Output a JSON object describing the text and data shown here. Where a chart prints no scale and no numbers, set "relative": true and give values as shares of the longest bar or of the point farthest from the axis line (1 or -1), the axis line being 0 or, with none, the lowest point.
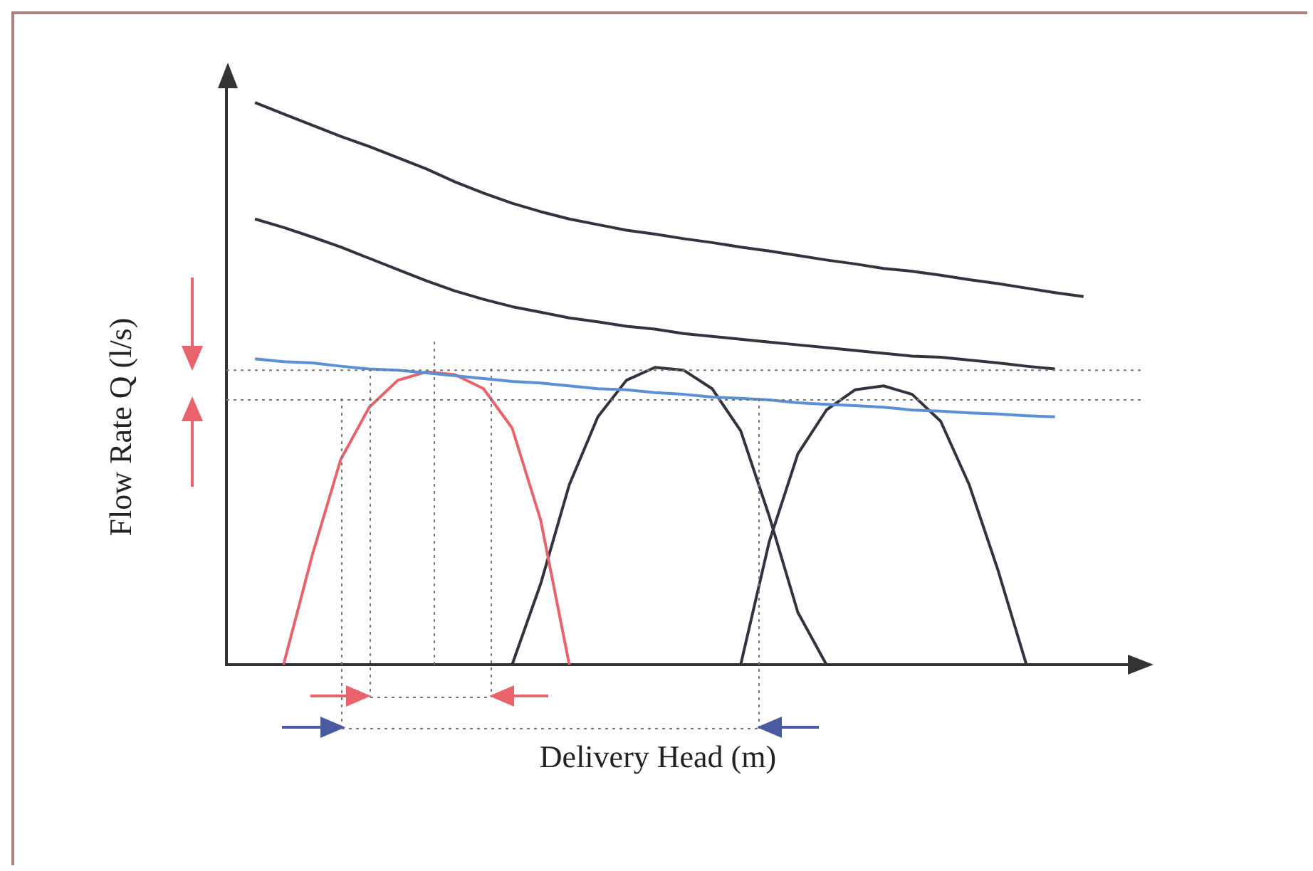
{
  "chart_data": {
    "type": "line",
    "relative": true,
    "xlabel": "Delivery Head (m)",
    "ylabel": "Flow Rate Q (l/s)",
    "legend": false,
    "ref_lines": [
      {
        "axis": "y",
        "value": 0.524,
        "color": "#777777",
        "line_style": "dotted"
      },
      {
        "axis": "y",
        "value": 0.471,
        "color": "#777777",
        "line_style": "dotted"
      }
    ],
    "grid": false,
    "marker": "none",
    "line_style": "solid",
    "categories": [
      null,
      null,
      null,
      null,
      null,
      null,
      null,
      null,
      null,
      null,
      null,
      null,
      null,
      null,
      null,
      null,
      null,
      null,
      null,
      null,
      null,
      null,
      null,
      null,
      null,
      null,
      null,
      null,
      null,
      null,
      null,
      null,
      null
    ],
    "series": [
      {
        "color": "#33333f",
        "values": [
          null,
          1.0,
          0.98,
          0.96,
          0.94,
          0.922,
          0.902,
          0.882,
          0.859,
          0.839,
          0.821,
          0.806,
          0.793,
          0.783,
          0.773,
          0.766,
          0.758,
          0.751,
          0.743,
          0.736,
          0.728,
          0.72,
          0.713,
          0.705,
          0.7,
          0.693,
          0.685,
          0.678,
          0.67,
          0.662,
          0.655,
          null,
          null
        ]
      },
      {
        "color": "#33333f",
        "values": [
          null,
          0.793,
          0.778,
          0.761,
          0.743,
          0.723,
          0.703,
          0.683,
          0.665,
          0.65,
          0.637,
          0.627,
          0.617,
          0.61,
          0.602,
          0.597,
          0.589,
          0.584,
          0.579,
          0.574,
          0.569,
          0.564,
          0.559,
          0.554,
          0.549,
          0.547,
          0.542,
          0.537,
          0.531,
          0.526,
          null,
          null,
          null
        ]
      },
      {
        "color": "#5b8fd6",
        "values": [
          null,
          0.544,
          0.539,
          0.537,
          0.531,
          0.526,
          0.524,
          0.519,
          0.514,
          0.509,
          0.504,
          0.501,
          0.496,
          0.491,
          0.489,
          0.484,
          0.481,
          0.476,
          0.474,
          0.471,
          0.466,
          0.463,
          0.461,
          0.458,
          0.453,
          0.451,
          0.448,
          0.446,
          0.443,
          0.441,
          null,
          null,
          null
        ]
      },
      {
        "color": "#e8636b",
        "values": [
          null,
          null,
          0,
          0.194,
          0.365,
          0.458,
          0.506,
          0.521,
          0.516,
          0.491,
          0.421,
          0.257,
          0,
          null,
          null,
          null,
          null,
          null,
          null,
          null,
          null,
          null,
          null,
          null,
          null,
          null,
          null,
          null,
          null,
          null,
          null,
          null,
          null
        ]
      },
      {
        "color": "#33333f",
        "values": [
          null,
          null,
          null,
          null,
          null,
          null,
          null,
          null,
          null,
          null,
          0,
          0.144,
          0.32,
          0.441,
          0.506,
          0.529,
          0.524,
          0.491,
          0.416,
          0.264,
          0.093,
          0,
          null,
          null,
          null,
          null,
          null,
          null,
          null,
          null,
          null,
          null,
          null
        ]
      },
      {
        "color": "#33333f",
        "values": [
          null,
          null,
          null,
          null,
          null,
          null,
          null,
          null,
          null,
          null,
          null,
          null,
          null,
          null,
          null,
          null,
          null,
          null,
          0,
          0.219,
          0.375,
          0.453,
          0.489,
          0.496,
          0.481,
          0.433,
          0.32,
          0.169,
          0,
          null,
          null,
          null,
          null
        ]
      }
    ]
  }
}
